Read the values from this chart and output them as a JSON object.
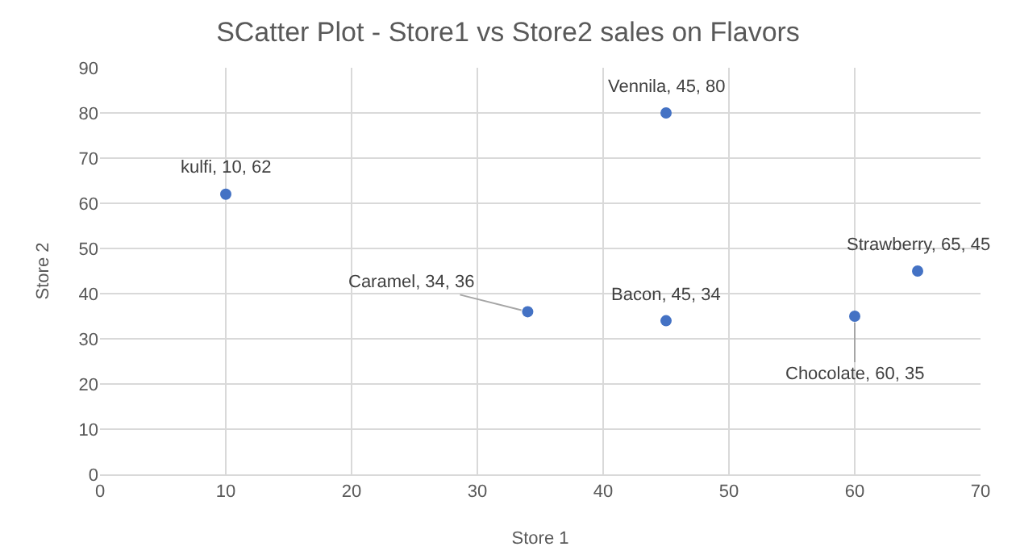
{
  "chart_data": {
    "type": "scatter",
    "title": "SCatter Plot - Store1 vs Store2 sales on Flavors",
    "xlabel": "Store 1",
    "ylabel": "Store 2",
    "x": [
      10,
      34,
      45,
      45,
      60,
      65
    ],
    "values": [
      62,
      36,
      80,
      34,
      35,
      45
    ],
    "value_labels": [
      "kulfi, 10, 62",
      "Caramel, 34, 36",
      "Vennila, 45, 80",
      "Bacon, 45, 34",
      "Chocolate, 60, 35",
      "Strawberry, 65, 45"
    ],
    "color": "#4472c4",
    "marker": "circle",
    "grid": true,
    "xlim": [
      0,
      70
    ],
    "xticks": [
      0,
      10,
      20,
      30,
      40,
      50,
      60,
      70
    ],
    "ylim": [
      0,
      90
    ],
    "yticks": [
      0,
      10,
      20,
      30,
      40,
      50,
      60,
      70,
      80,
      90
    ]
  }
}
